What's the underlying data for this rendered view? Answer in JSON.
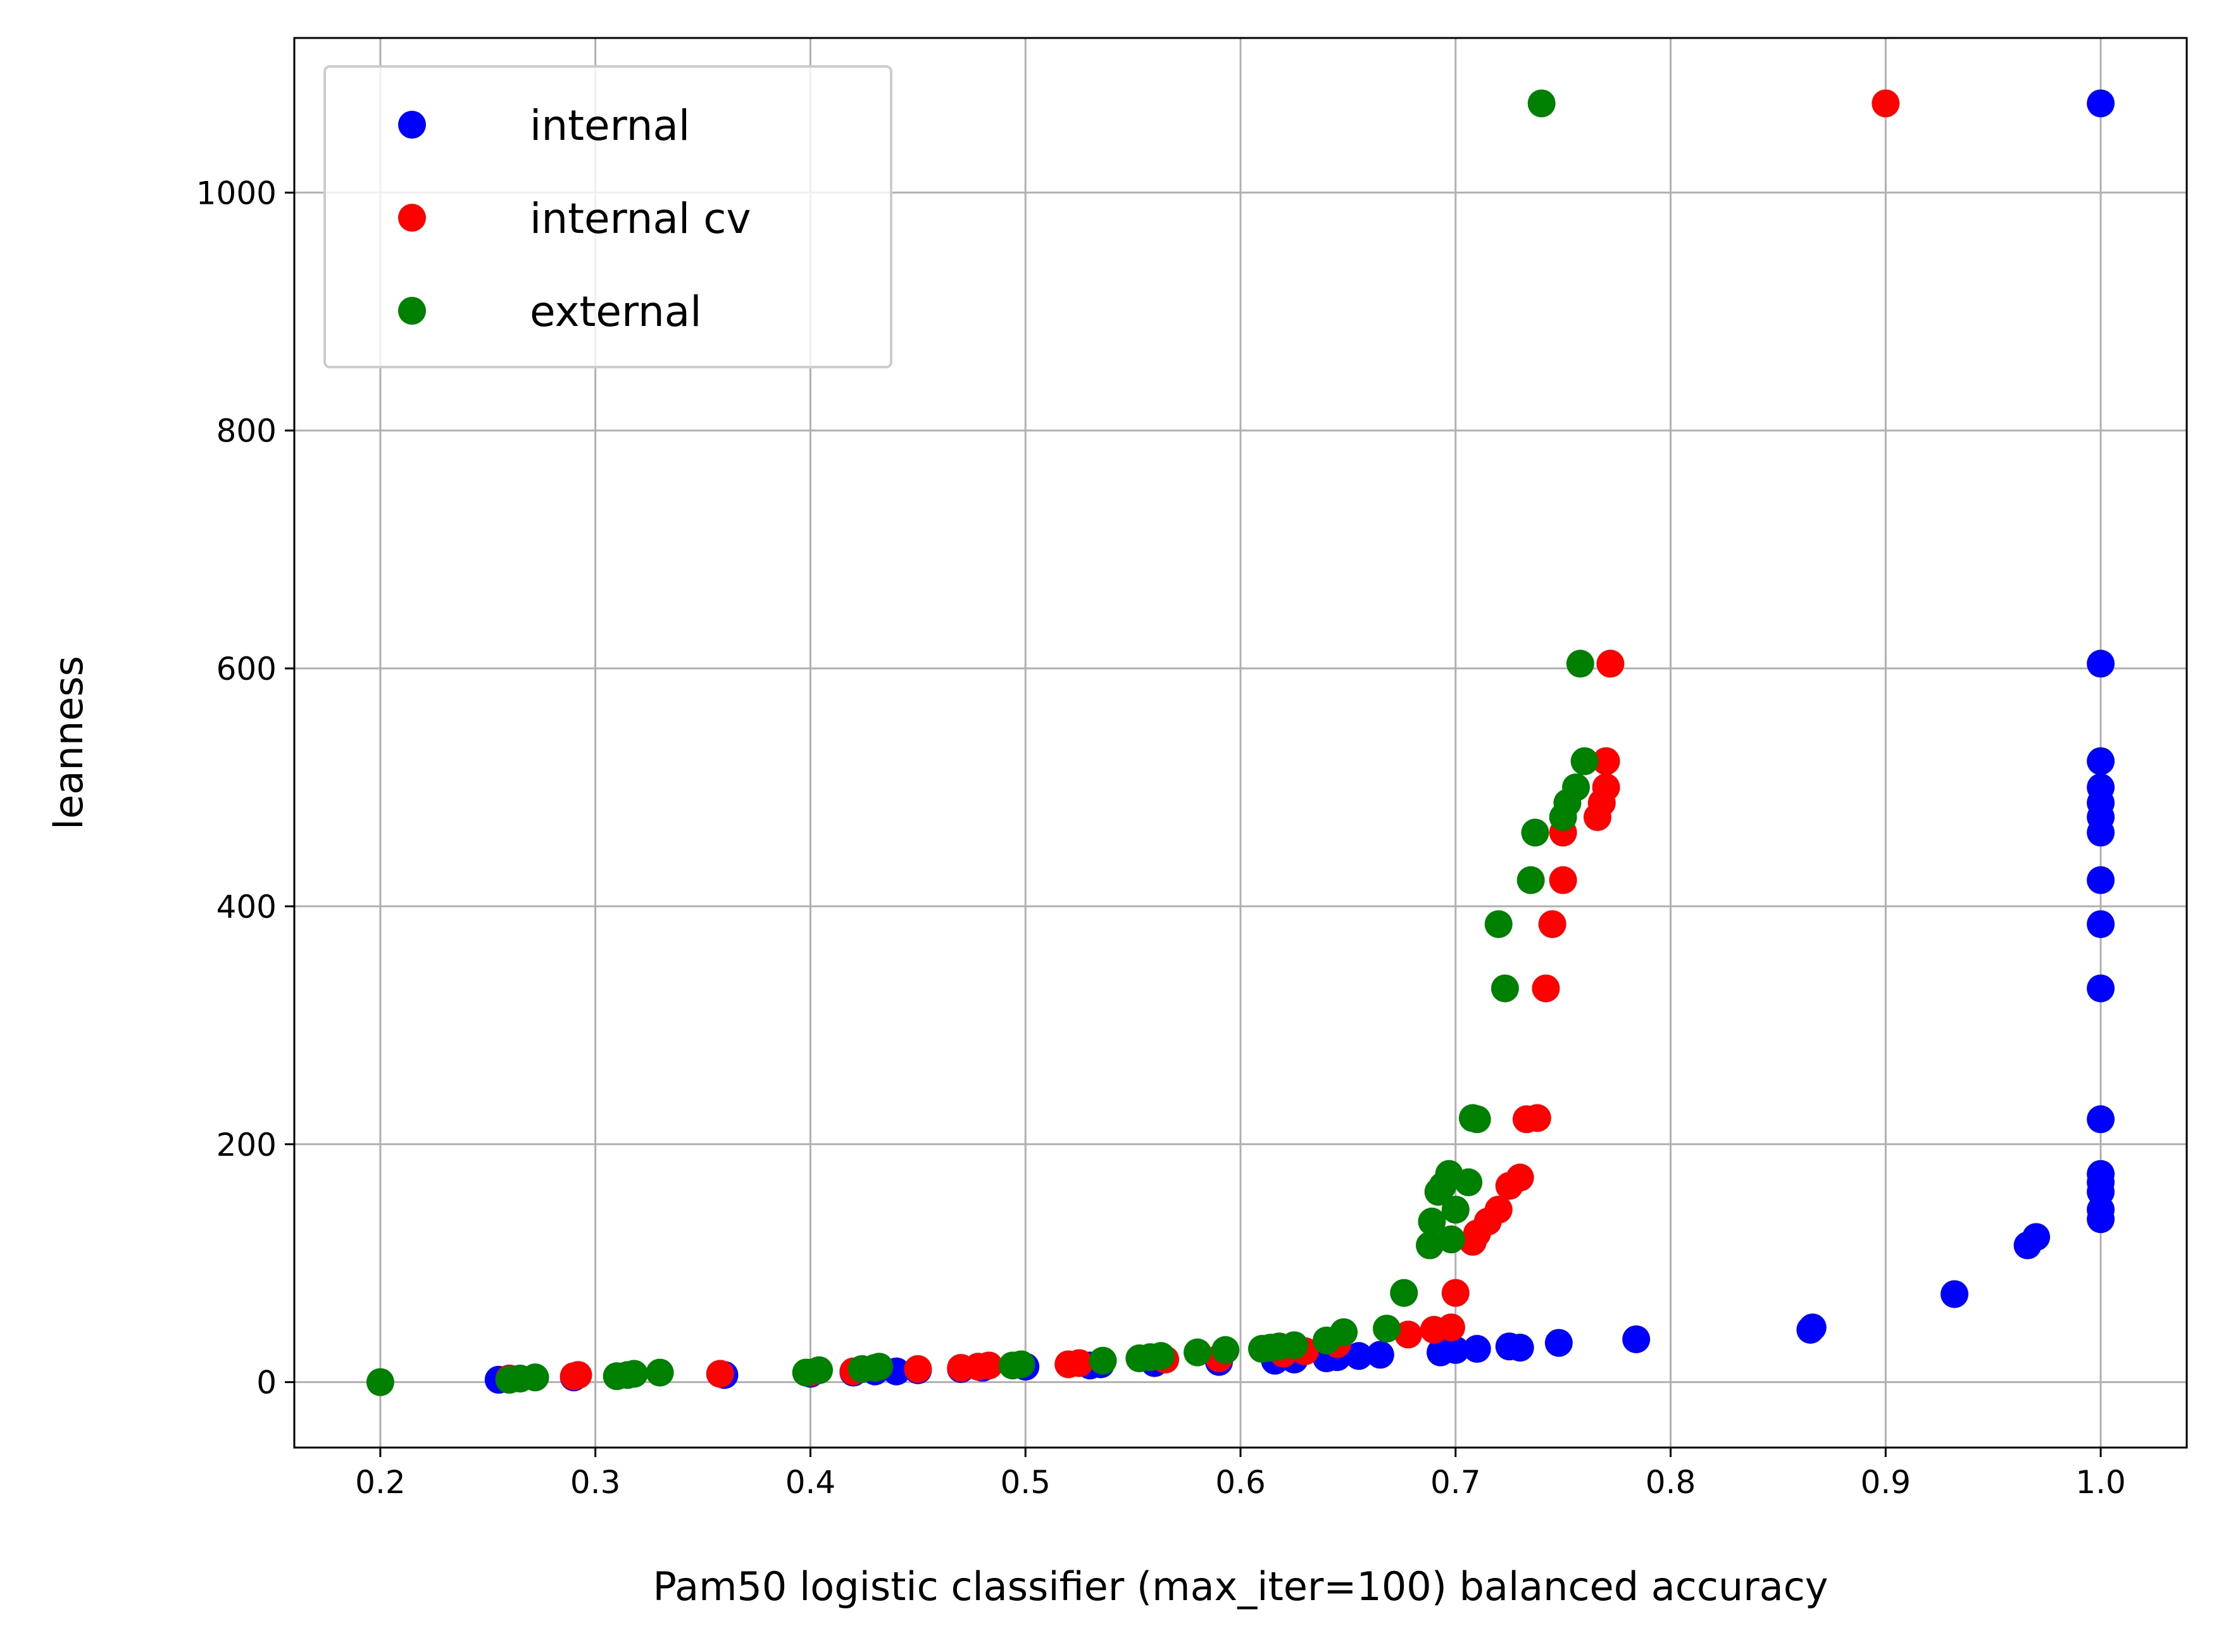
{
  "chart_data": {
    "type": "scatter",
    "xlabel": "Pam50 logistic classifier (max_iter=100) balanced accuracy",
    "ylabel": "leanness",
    "xlim": [
      0.16,
      1.04
    ],
    "ylim": [
      -55,
      1130
    ],
    "xticks": [
      0.2,
      0.3,
      0.4,
      0.5,
      0.6,
      0.7,
      0.8,
      0.9,
      1.0
    ],
    "xtick_labels": [
      "0.2",
      "0.3",
      "0.4",
      "0.5",
      "0.6",
      "0.7",
      "0.8",
      "0.9",
      "1.0"
    ],
    "yticks": [
      0,
      200,
      400,
      600,
      800,
      1000
    ],
    "ytick_labels": [
      "0",
      "200",
      "400",
      "600",
      "800",
      "1000"
    ],
    "grid": true,
    "legend_position": "top-left",
    "series": [
      {
        "name": "internal",
        "color": "#0000ff",
        "x": [
          0.255,
          0.26,
          0.29,
          0.36,
          0.4,
          0.42,
          0.43,
          0.44,
          0.45,
          0.47,
          0.48,
          0.5,
          0.53,
          0.535,
          0.56,
          0.59,
          0.616,
          0.625,
          0.64,
          0.645,
          0.655,
          0.665,
          0.693,
          0.7,
          0.71,
          0.725,
          0.73,
          0.748,
          0.784,
          0.865,
          0.866,
          0.932,
          0.966,
          0.97,
          1.0,
          1.0,
          1.0,
          1.0,
          1.0,
          1.0,
          1.0,
          1.0,
          1.0,
          1.0,
          1.0,
          1.0,
          1.0,
          1.0,
          1.0,
          1.0
        ],
        "y": [
          2,
          3,
          4,
          6,
          7,
          8,
          9,
          9,
          10,
          11,
          12,
          13,
          14,
          15,
          16,
          17,
          18,
          19,
          20,
          21,
          22,
          23,
          25,
          27,
          28,
          30,
          29,
          33,
          36,
          44,
          46,
          74,
          115,
          122,
          137,
          145,
          160,
          168,
          175,
          221,
          331,
          385,
          422,
          462,
          475,
          487,
          500,
          522,
          604,
          1075
        ]
      },
      {
        "name": "internal cv",
        "color": "#ff0000",
        "x": [
          0.26,
          0.29,
          0.292,
          0.358,
          0.4,
          0.42,
          0.45,
          0.47,
          0.478,
          0.483,
          0.52,
          0.525,
          0.565,
          0.59,
          0.62,
          0.63,
          0.645,
          0.678,
          0.69,
          0.698,
          0.7,
          0.708,
          0.71,
          0.715,
          0.72,
          0.725,
          0.73,
          0.733,
          0.738,
          0.742,
          0.745,
          0.75,
          0.75,
          0.766,
          0.768,
          0.77,
          0.77,
          0.772,
          0.9
        ],
        "y": [
          3,
          5,
          6,
          7,
          8,
          9,
          11,
          12,
          13,
          14,
          15,
          16,
          19,
          20,
          24,
          26,
          32,
          40,
          44,
          46,
          75,
          118,
          125,
          135,
          145,
          165,
          172,
          221,
          222,
          331,
          385,
          422,
          462,
          475,
          487,
          500,
          522,
          604,
          1075
        ]
      },
      {
        "name": "external",
        "color": "#008000",
        "x": [
          0.2,
          0.26,
          0.265,
          0.272,
          0.31,
          0.315,
          0.318,
          0.33,
          0.398,
          0.404,
          0.424,
          0.43,
          0.432,
          0.494,
          0.498,
          0.536,
          0.553,
          0.558,
          0.563,
          0.58,
          0.593,
          0.61,
          0.614,
          0.618,
          0.625,
          0.64,
          0.648,
          0.668,
          0.676,
          0.688,
          0.689,
          0.692,
          0.694,
          0.697,
          0.698,
          0.7,
          0.706,
          0.708,
          0.71,
          0.72,
          0.723,
          0.735,
          0.737,
          0.75,
          0.752,
          0.756,
          0.758,
          0.76,
          0.74
        ],
        "y": [
          0,
          2,
          3,
          4,
          5,
          6,
          7,
          8,
          8,
          10,
          11,
          12,
          13,
          14,
          15,
          18,
          20,
          21,
          22,
          25,
          27,
          28,
          29,
          30,
          31,
          35,
          42,
          45,
          75,
          115,
          135,
          160,
          165,
          175,
          120,
          145,
          168,
          222,
          221,
          385,
          331,
          422,
          462,
          475,
          487,
          500,
          604,
          522,
          1075
        ]
      }
    ]
  }
}
